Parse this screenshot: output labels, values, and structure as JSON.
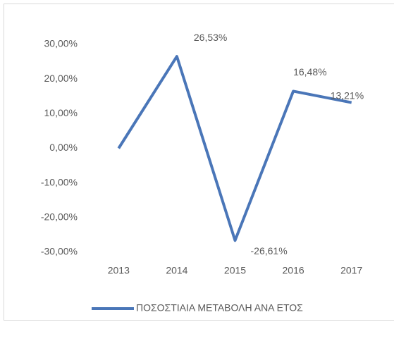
{
  "chart_data": {
    "type": "line",
    "categories": [
      "2013",
      "2014",
      "2015",
      "2016",
      "2017"
    ],
    "series": [
      {
        "name": "ΠΟΣΟΣΤΙΑΙΑ ΜΕΤΑΒΟΛΗ ΑΝΑ ΕΤΟΣ",
        "color": "#4a76b8",
        "values": [
          0,
          26.53,
          -26.61,
          16.48,
          13.21
        ],
        "value_labels": [
          null,
          "26,53%",
          "-26,61%",
          "16,48%",
          "13,21%"
        ]
      }
    ],
    "ylim": [
      -30,
      30
    ],
    "yticks": [
      {
        "value": 30,
        "label": "30,00%"
      },
      {
        "value": 20,
        "label": "20,00%"
      },
      {
        "value": 10,
        "label": "10,00%"
      },
      {
        "value": 0,
        "label": "0,00%"
      },
      {
        "value": -10,
        "label": "-10,00%"
      },
      {
        "value": -20,
        "label": "-20,00%"
      },
      {
        "value": -30,
        "label": "-30,00%"
      }
    ],
    "grid": false,
    "legend": "bottom"
  }
}
